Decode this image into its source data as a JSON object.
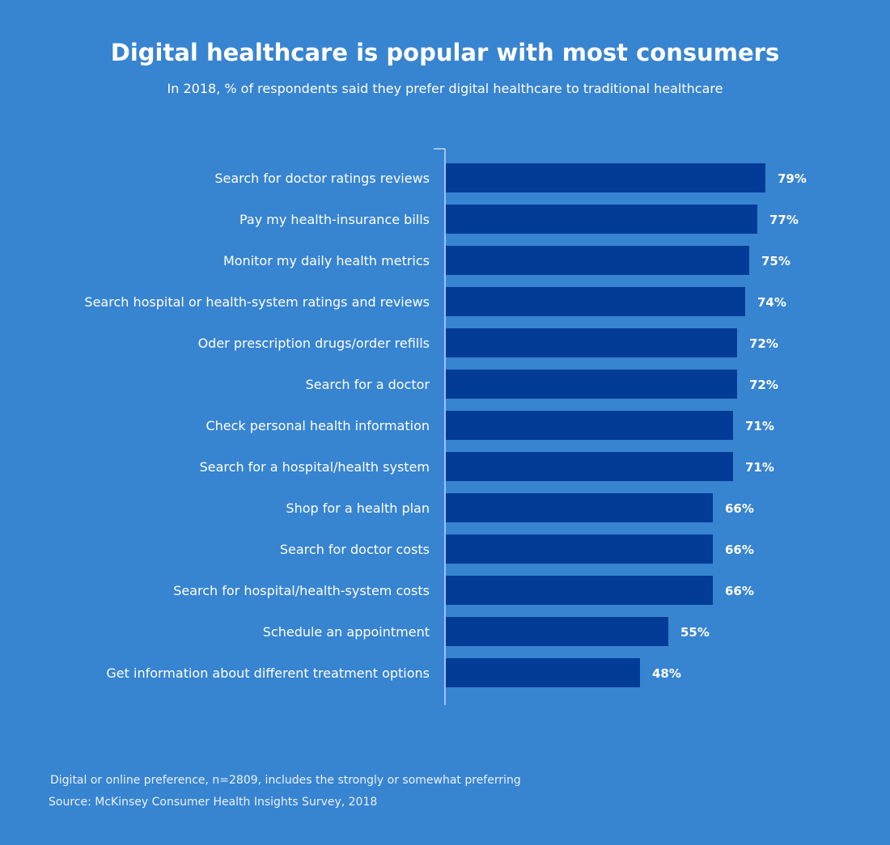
{
  "chart_data": {
    "type": "bar",
    "orientation": "horizontal",
    "title": "Digital healthcare is popular with most consumers",
    "subtitle": "In 2018, % of respondents said they prefer digital healthcare to traditional healthcare",
    "categories": [
      "Search for doctor ratings reviews",
      "Pay my health-insurance bills",
      "Monitor my daily health metrics",
      "Search hospital or health-system ratings and reviews",
      "Oder prescription drugs/order refills",
      "Search for a doctor",
      "Check personal health information",
      "Search for a hospital/health system",
      "Shop for a health plan",
      "Search for doctor costs",
      "Search for hospital/health-system costs",
      "Schedule an appointment",
      "Get information about different treatment options"
    ],
    "values": [
      79,
      77,
      75,
      74,
      72,
      72,
      71,
      71,
      66,
      66,
      66,
      55,
      48
    ],
    "value_labels": [
      "79%",
      "77%",
      "75%",
      "74%",
      "72%",
      "72%",
      "71%",
      "71%",
      "66%",
      "66%",
      "66%",
      "55%",
      "48%"
    ],
    "xlim": [
      0,
      100
    ],
    "grid": false,
    "legend": "none",
    "bar_color": "#023c96",
    "background_color": "#3784d1"
  },
  "notes": {
    "footnote": "Digital or online preference, n=2809, includes the strongly or somewhat preferring",
    "source": "Source: McKinsey Consumer Health Insights Survey, 2018"
  }
}
